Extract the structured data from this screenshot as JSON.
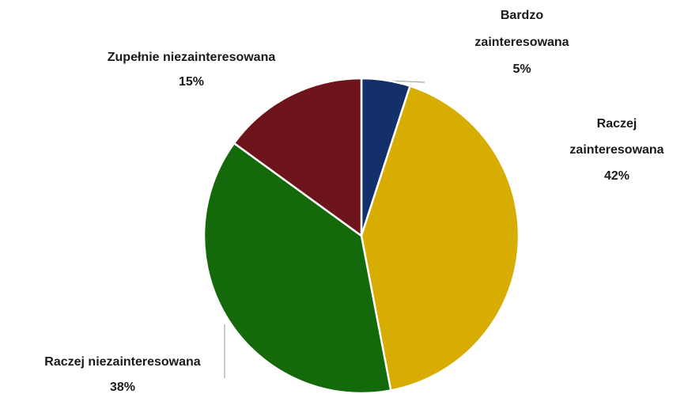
{
  "chart_data": {
    "type": "pie",
    "categories": [
      "Bardzo zainteresowana",
      "Raczej zainteresowana",
      "Raczej niezainteresowana",
      "Zupełnie niezainteresowana"
    ],
    "values": [
      5,
      42,
      38,
      15
    ],
    "value_labels": [
      "5%",
      "42%",
      "38%",
      "15%"
    ],
    "colors": [
      "#14306a",
      "#d6ad00",
      "#146a0a",
      "#6e141c"
    ]
  }
}
